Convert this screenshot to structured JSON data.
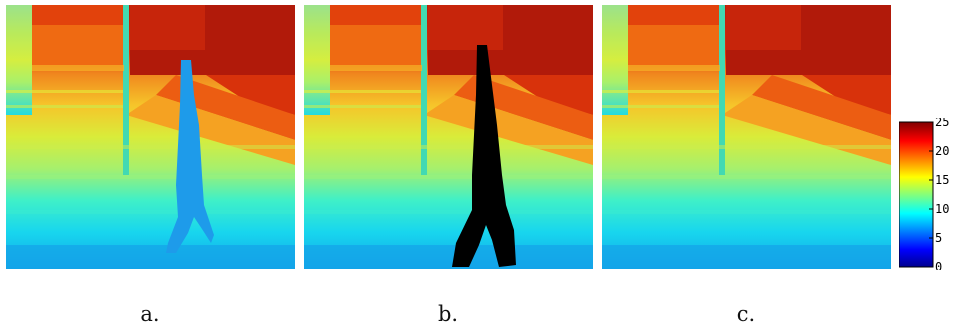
{
  "figure": {
    "panels": [
      {
        "id": "a",
        "caption": "a.",
        "content": "depth-map-with-person-rendered-in-blue"
      },
      {
        "id": "b",
        "caption": "b.",
        "content": "depth-map-with-person-mask-in-black"
      },
      {
        "id": "c",
        "caption": "c.",
        "content": "depth-map-background-only"
      }
    ],
    "colorbar": {
      "min": 0,
      "max": 25,
      "ticks": [
        "25",
        "20",
        "15",
        "10",
        "5",
        "0"
      ],
      "colormap": "jet"
    }
  }
}
